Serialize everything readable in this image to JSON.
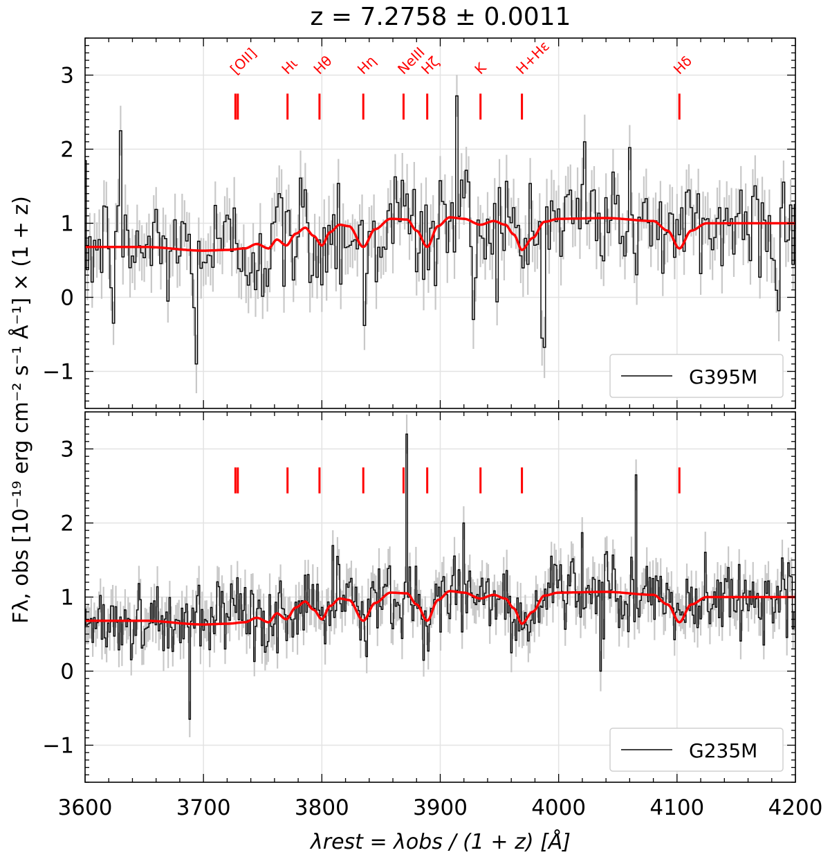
{
  "chart_data": {
    "type": "line",
    "title": "z = 7.2758 ± 0.0011",
    "xlabel": "λrest = λobs / (1 + z) [Å]",
    "ylabel": "Fλ, obs [10⁻¹⁹ erg cm⁻² s⁻¹ Å⁻¹] × (1 + z)",
    "xlim": [
      3600,
      4200
    ],
    "ylim": [
      -1.5,
      3.5
    ],
    "x_ticks": [
      "3600",
      "3700",
      "3800",
      "3900",
      "4000",
      "4100",
      "4200"
    ],
    "y_ticks": [
      "−1",
      "0",
      "1",
      "2",
      "3"
    ],
    "grid": true,
    "spectral_lines": [
      {
        "label": "[OII]",
        "wavelength": 3727
      },
      {
        "label": "[OII]",
        "wavelength": 3729
      },
      {
        "label": "Hι",
        "wavelength": 3771
      },
      {
        "label": "Hθ",
        "wavelength": 3798
      },
      {
        "label": "Hη",
        "wavelength": 3835
      },
      {
        "label": "NeIII",
        "wavelength": 3869
      },
      {
        "label": "Hζ",
        "wavelength": 3889
      },
      {
        "label": "K",
        "wavelength": 3934
      },
      {
        "label": "H+Hε",
        "wavelength": 3969
      },
      {
        "label": "Hδ",
        "wavelength": 4102
      }
    ],
    "label_y": 3.0,
    "marker_y": [
      2.4,
      2.75
    ],
    "model": {
      "x": [
        3600,
        3650,
        3700,
        3720,
        3735,
        3745,
        3755,
        3762,
        3770,
        3778,
        3786,
        3793,
        3800,
        3807,
        3815,
        3823,
        3835,
        3845,
        3858,
        3872,
        3880,
        3889,
        3898,
        3908,
        3920,
        3934,
        3945,
        3955,
        3962,
        3969,
        3978,
        3988,
        4000,
        4040,
        4080,
        4092,
        4102,
        4112,
        4125,
        4160,
        4200
      ],
      "y": [
        0.68,
        0.68,
        0.63,
        0.64,
        0.66,
        0.72,
        0.66,
        0.78,
        0.7,
        0.86,
        0.94,
        0.83,
        0.7,
        0.88,
        0.98,
        0.96,
        0.68,
        0.92,
        1.06,
        1.05,
        0.9,
        0.68,
        0.96,
        1.08,
        1.06,
        0.98,
        1.03,
        0.98,
        0.85,
        0.64,
        0.8,
        1.02,
        1.06,
        1.07,
        1.03,
        0.9,
        0.66,
        0.9,
        1.0,
        1.0,
        1.0
      ],
      "color": "#ff0000"
    },
    "panels": [
      {
        "name": "G395M",
        "legend": "G395M",
        "seed": 12345,
        "step": 2.0,
        "noise": 0.42,
        "err": 0.35,
        "spikes": [
          {
            "x": 3623,
            "y": -0.35
          },
          {
            "x": 3629,
            "y": 2.25
          },
          {
            "x": 3693,
            "y": -0.9
          },
          {
            "x": 3835,
            "y": -0.38
          },
          {
            "x": 3913,
            "y": 2.72
          },
          {
            "x": 3927,
            "y": -0.3
          },
          {
            "x": 3985,
            "y": -0.55
          },
          {
            "x": 4021,
            "y": 2.1
          },
          {
            "x": 4186,
            "y": -0.18
          }
        ],
        "data_color": "#000000",
        "err_color": "#c8c8c8"
      },
      {
        "name": "G235M",
        "legend": "G235M",
        "seed": 67890,
        "step": 1.3,
        "noise": 0.26,
        "err": 0.24,
        "spikes": [
          {
            "x": 3688,
            "y": -0.65
          },
          {
            "x": 3813,
            "y": 1.55
          },
          {
            "x": 3872,
            "y": 3.2
          },
          {
            "x": 3920,
            "y": 2.0
          },
          {
            "x": 4036,
            "y": 0.0
          },
          {
            "x": 4065,
            "y": 2.65
          }
        ],
        "data_color": "#000000",
        "err_color": "#c8c8c8"
      }
    ]
  }
}
